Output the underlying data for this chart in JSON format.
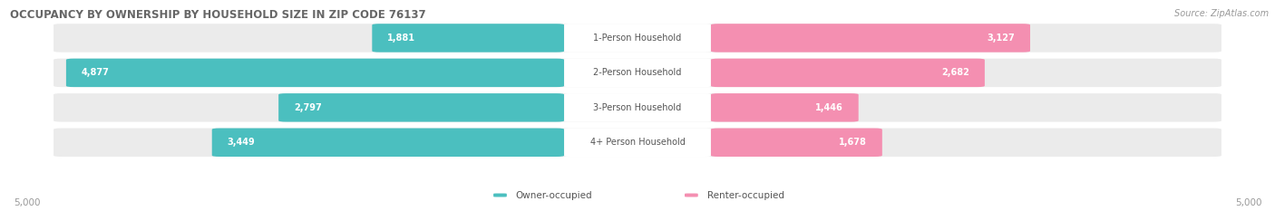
{
  "title": "OCCUPANCY BY OWNERSHIP BY HOUSEHOLD SIZE IN ZIP CODE 76137",
  "source": "Source: ZipAtlas.com",
  "categories": [
    "1-Person Household",
    "2-Person Household",
    "3-Person Household",
    "4+ Person Household"
  ],
  "owner_values": [
    1881,
    4877,
    2797,
    3449
  ],
  "renter_values": [
    3127,
    2682,
    1446,
    1678
  ],
  "max_scale": 5000,
  "owner_color": "#4BBFBF",
  "renter_color": "#F48FB1",
  "bg_color": "#FFFFFF",
  "bar_bg_color": "#EBEBEB",
  "title_color": "#666666",
  "source_color": "#999999",
  "value_color_inside": "#FFFFFF",
  "value_color_outside": "#888888",
  "label_color": "#555555",
  "axis_color": "#999999",
  "title_fontsize": 8.5,
  "label_fontsize": 7.0,
  "value_fontsize": 7.0,
  "legend_fontsize": 7.5,
  "axis_fontsize": 7.5,
  "figsize": [
    14.06,
    2.33
  ],
  "dpi": 100
}
